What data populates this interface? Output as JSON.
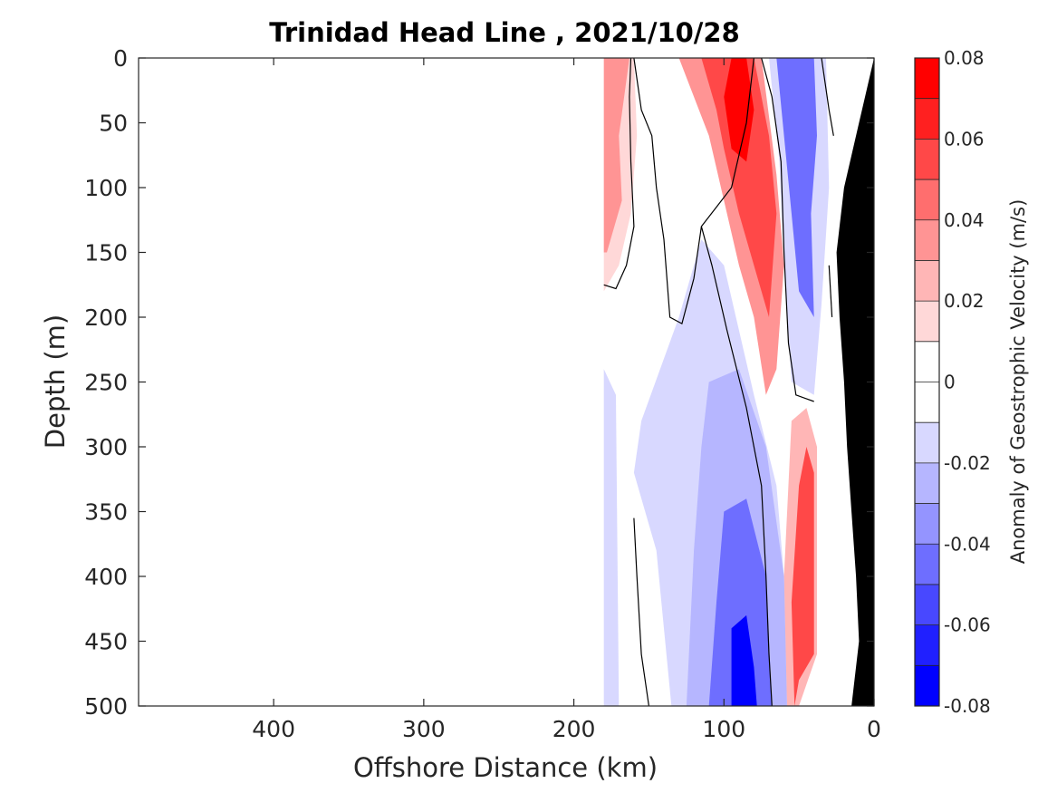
{
  "chart_data": {
    "type": "contour",
    "title": "Trinidad Head Line , 2021/10/28",
    "xlabel": "Offshore Distance (km)",
    "ylabel": "Depth (m)",
    "xlim": [
      490,
      0
    ],
    "ylim": [
      0,
      500
    ],
    "x_reversed": true,
    "y_reversed": true,
    "xticks": [
      400,
      300,
      200,
      100,
      0
    ],
    "yticks": [
      0,
      50,
      100,
      150,
      200,
      250,
      300,
      350,
      400,
      450,
      500
    ],
    "colorbar": {
      "label": "Anomaly of Geostrophic Velocity (m/s)",
      "range": [
        -0.08,
        0.08
      ],
      "ticks": [
        "0.08",
        "0.06",
        "0.04",
        "0.02",
        "0",
        "-0.02",
        "-0.04",
        "-0.06",
        "-0.08"
      ],
      "levels": 16,
      "colors": [
        "#0000ff",
        "#2020ff",
        "#4848ff",
        "#6e6eff",
        "#9494ff",
        "#b6b6ff",
        "#d8d8ff",
        "#ffffff",
        "#ffffff",
        "#ffd8d8",
        "#ffb6b6",
        "#ff9494",
        "#ff6e6e",
        "#ff4848",
        "#ff2020",
        "#ff0000"
      ]
    },
    "bottom_color": "#000000",
    "regions": [
      {
        "name": "coastal-positive-core",
        "value": 0.08,
        "points": [
          [
            95,
            0
          ],
          [
            85,
            0
          ],
          [
            80,
            40
          ],
          [
            85,
            80
          ],
          [
            95,
            70
          ],
          [
            100,
            30
          ]
        ]
      },
      {
        "name": "coastal-positive-jet",
        "value": 0.05,
        "points": [
          [
            115,
            0
          ],
          [
            80,
            0
          ],
          [
            70,
            60
          ],
          [
            65,
            120
          ],
          [
            70,
            200
          ],
          [
            80,
            160
          ],
          [
            90,
            120
          ],
          [
            100,
            70
          ],
          [
            105,
            40
          ]
        ]
      },
      {
        "name": "coastal-positive-wide",
        "value": 0.03,
        "points": [
          [
            130,
            0
          ],
          [
            75,
            0
          ],
          [
            65,
            90
          ],
          [
            60,
            160
          ],
          [
            65,
            240
          ],
          [
            72,
            260
          ],
          [
            80,
            200
          ],
          [
            90,
            160
          ],
          [
            100,
            110
          ],
          [
            110,
            60
          ]
        ]
      },
      {
        "name": "offshore-positive",
        "value": 0.03,
        "points": [
          [
            180,
            0
          ],
          [
            163,
            0
          ],
          [
            170,
            60
          ],
          [
            168,
            110
          ],
          [
            178,
            150
          ],
          [
            180,
            150
          ]
        ]
      },
      {
        "name": "offshore-positive-weak",
        "value": 0.015,
        "points": [
          [
            180,
            0
          ],
          [
            160,
            0
          ],
          [
            158,
            60
          ],
          [
            162,
            120
          ],
          [
            170,
            160
          ],
          [
            180,
            180
          ]
        ]
      },
      {
        "name": "nearshore-negative",
        "value": -0.05,
        "points": [
          [
            65,
            0
          ],
          [
            40,
            0
          ],
          [
            38,
            60
          ],
          [
            42,
            120
          ],
          [
            40,
            200
          ],
          [
            50,
            180
          ],
          [
            55,
            120
          ],
          [
            60,
            60
          ]
        ]
      },
      {
        "name": "nearshore-negative-weak",
        "value": -0.02,
        "points": [
          [
            70,
            0
          ],
          [
            32,
            0
          ],
          [
            30,
            100
          ],
          [
            35,
            190
          ],
          [
            40,
            260
          ],
          [
            55,
            250
          ],
          [
            60,
            160
          ],
          [
            63,
            80
          ]
        ]
      },
      {
        "name": "deep-negative-core",
        "value": -0.07,
        "points": [
          [
            95,
            440
          ],
          [
            85,
            430
          ],
          [
            80,
            470
          ],
          [
            78,
            500
          ],
          [
            95,
            500
          ]
        ]
      },
      {
        "name": "deep-negative",
        "value": -0.045,
        "points": [
          [
            100,
            350
          ],
          [
            85,
            340
          ],
          [
            72,
            400
          ],
          [
            68,
            500
          ],
          [
            110,
            500
          ],
          [
            105,
            420
          ]
        ]
      },
      {
        "name": "deep-negative-wide",
        "value": -0.025,
        "points": [
          [
            110,
            250
          ],
          [
            90,
            240
          ],
          [
            72,
            300
          ],
          [
            60,
            400
          ],
          [
            58,
            500
          ],
          [
            125,
            500
          ],
          [
            120,
            380
          ],
          [
            115,
            300
          ]
        ]
      },
      {
        "name": "mid-negative-weak",
        "value": -0.012,
        "points": [
          [
            115,
            140
          ],
          [
            100,
            160
          ],
          [
            80,
            260
          ],
          [
            65,
            330
          ],
          [
            60,
            400
          ],
          [
            55,
            500
          ],
          [
            135,
            500
          ],
          [
            145,
            380
          ],
          [
            160,
            320
          ],
          [
            155,
            280
          ],
          [
            130,
            200
          ]
        ]
      },
      {
        "name": "offshore-negative-weak",
        "value": -0.012,
        "points": [
          [
            180,
            240
          ],
          [
            172,
            260
          ],
          [
            170,
            500
          ],
          [
            180,
            500
          ]
        ]
      },
      {
        "name": "deep-positive",
        "value": 0.05,
        "points": [
          [
            50,
            330
          ],
          [
            45,
            300
          ],
          [
            40,
            320
          ],
          [
            40,
            460
          ],
          [
            50,
            480
          ],
          [
            53,
            500
          ],
          [
            55,
            420
          ]
        ]
      },
      {
        "name": "deep-positive-wide",
        "value": 0.02,
        "points": [
          [
            55,
            280
          ],
          [
            45,
            270
          ],
          [
            38,
            300
          ],
          [
            38,
            460
          ],
          [
            50,
            500
          ],
          [
            58,
            500
          ],
          [
            60,
            400
          ]
        ]
      }
    ],
    "contour_zero_lines": [
      {
        "points": [
          [
            180,
            175
          ],
          [
            172,
            178
          ],
          [
            165,
            160
          ],
          [
            160,
            130
          ],
          [
            162,
            80
          ],
          [
            163,
            30
          ],
          [
            162,
            0
          ]
        ]
      },
      {
        "points": [
          [
            160,
            0
          ],
          [
            155,
            40
          ],
          [
            148,
            60
          ],
          [
            145,
            100
          ],
          [
            140,
            140
          ],
          [
            136,
            200
          ],
          [
            128,
            205
          ],
          [
            120,
            170
          ],
          [
            115,
            130
          ],
          [
            105,
            115
          ],
          [
            95,
            100
          ],
          [
            85,
            50
          ],
          [
            80,
            0
          ]
        ]
      },
      {
        "points": [
          [
            75,
            0
          ],
          [
            68,
            30
          ],
          [
            62,
            80
          ],
          [
            60,
            150
          ],
          [
            57,
            220
          ],
          [
            52,
            260
          ],
          [
            40,
            265
          ]
        ]
      },
      {
        "points": [
          [
            35,
            0
          ],
          [
            30,
            40
          ],
          [
            27,
            60
          ]
        ]
      },
      {
        "points": [
          [
            115,
            130
          ],
          [
            108,
            160
          ],
          [
            98,
            210
          ],
          [
            85,
            270
          ],
          [
            75,
            330
          ],
          [
            72,
            400
          ],
          [
            70,
            460
          ],
          [
            68,
            500
          ]
        ]
      },
      {
        "points": [
          [
            160,
            355
          ],
          [
            158,
            400
          ],
          [
            155,
            460
          ],
          [
            150,
            500
          ]
        ]
      },
      {
        "points": [
          [
            30,
            160
          ],
          [
            28,
            200
          ]
        ]
      }
    ],
    "bathymetry": [
      [
        0,
        0
      ],
      [
        10,
        50
      ],
      [
        20,
        100
      ],
      [
        25,
        150
      ],
      [
        23,
        200
      ],
      [
        20,
        250
      ],
      [
        18,
        300
      ],
      [
        15,
        350
      ],
      [
        12,
        400
      ],
      [
        10,
        450
      ],
      [
        15,
        500
      ],
      [
        0,
        500
      ]
    ]
  }
}
